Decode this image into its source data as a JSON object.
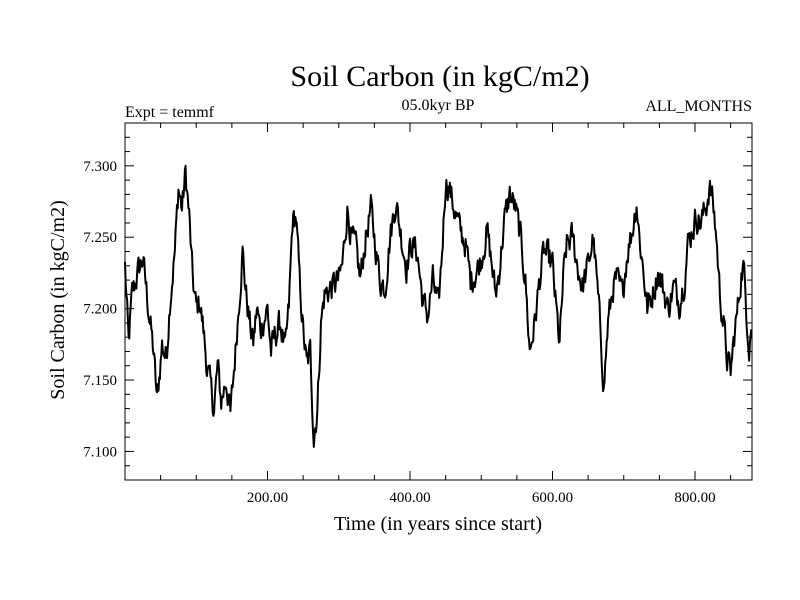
{
  "chart_data": {
    "type": "line",
    "title": "Soil Carbon (in kgC/m2)",
    "subtitle_left": "Expt = temmf",
    "subtitle_center": "05.0kyr BP",
    "subtitle_right": "ALL_MONTHS",
    "xlabel": "Time (in years since start)",
    "ylabel": "Soil Carbon (in kgC/m2)",
    "xlim": [
      0,
      880
    ],
    "ylim": [
      7.08,
      7.33
    ],
    "x_ticks": [
      200,
      400,
      600,
      800
    ],
    "x_tick_labels": [
      "200.00",
      "400.00",
      "600.00",
      "800.00"
    ],
    "y_ticks": [
      7.1,
      7.15,
      7.2,
      7.25,
      7.3
    ],
    "y_tick_labels": [
      "7.100",
      "7.150",
      "7.200",
      "7.250",
      "7.300"
    ],
    "line_color": "#000000",
    "series": [
      {
        "name": "Soil Carbon",
        "x_start": 0,
        "x_step": 1,
        "count": 880,
        "noise_amplitude": 0.008,
        "anchors": [
          [
            0,
            7.23
          ],
          [
            5,
            7.175
          ],
          [
            10,
            7.21
          ],
          [
            18,
            7.225
          ],
          [
            25,
            7.235
          ],
          [
            33,
            7.2
          ],
          [
            40,
            7.17
          ],
          [
            45,
            7.135
          ],
          [
            52,
            7.175
          ],
          [
            58,
            7.165
          ],
          [
            63,
            7.205
          ],
          [
            70,
            7.24
          ],
          [
            75,
            7.285
          ],
          [
            80,
            7.27
          ],
          [
            85,
            7.295
          ],
          [
            90,
            7.265
          ],
          [
            95,
            7.22
          ],
          [
            100,
            7.2
          ],
          [
            105,
            7.205
          ],
          [
            110,
            7.185
          ],
          [
            115,
            7.16
          ],
          [
            120,
            7.145
          ],
          [
            125,
            7.13
          ],
          [
            130,
            7.16
          ],
          [
            135,
            7.135
          ],
          [
            142,
            7.15
          ],
          [
            148,
            7.125
          ],
          [
            155,
            7.17
          ],
          [
            160,
            7.205
          ],
          [
            165,
            7.24
          ],
          [
            170,
            7.21
          ],
          [
            175,
            7.19
          ],
          [
            180,
            7.175
          ],
          [
            185,
            7.2
          ],
          [
            190,
            7.185
          ],
          [
            200,
            7.2
          ],
          [
            205,
            7.17
          ],
          [
            210,
            7.18
          ],
          [
            218,
            7.19
          ],
          [
            225,
            7.17
          ],
          [
            230,
            7.2
          ],
          [
            235,
            7.26
          ],
          [
            240,
            7.265
          ],
          [
            245,
            7.22
          ],
          [
            250,
            7.185
          ],
          [
            255,
            7.16
          ],
          [
            260,
            7.17
          ],
          [
            265,
            7.11
          ],
          [
            270,
            7.13
          ],
          [
            275,
            7.19
          ],
          [
            280,
            7.21
          ],
          [
            290,
            7.215
          ],
          [
            300,
            7.22
          ],
          [
            305,
            7.23
          ],
          [
            312,
            7.27
          ],
          [
            318,
            7.25
          ],
          [
            325,
            7.24
          ],
          [
            330,
            7.22
          ],
          [
            338,
            7.25
          ],
          [
            345,
            7.27
          ],
          [
            350,
            7.25
          ],
          [
            358,
            7.22
          ],
          [
            365,
            7.215
          ],
          [
            372,
            7.25
          ],
          [
            380,
            7.275
          ],
          [
            388,
            7.25
          ],
          [
            395,
            7.23
          ],
          [
            402,
            7.245
          ],
          [
            410,
            7.24
          ],
          [
            418,
            7.205
          ],
          [
            425,
            7.195
          ],
          [
            432,
            7.22
          ],
          [
            440,
            7.2
          ],
          [
            445,
            7.24
          ],
          [
            450,
            7.29
          ],
          [
            455,
            7.285
          ],
          [
            462,
            7.27
          ],
          [
            470,
            7.255
          ],
          [
            478,
            7.245
          ],
          [
            485,
            7.22
          ],
          [
            492,
            7.225
          ],
          [
            500,
            7.235
          ],
          [
            508,
            7.255
          ],
          [
            515,
            7.23
          ],
          [
            520,
            7.21
          ],
          [
            525,
            7.225
          ],
          [
            532,
            7.26
          ],
          [
            540,
            7.28
          ],
          [
            548,
            7.27
          ],
          [
            555,
            7.25
          ],
          [
            562,
            7.22
          ],
          [
            568,
            7.17
          ],
          [
            575,
            7.19
          ],
          [
            582,
            7.22
          ],
          [
            588,
            7.24
          ],
          [
            595,
            7.235
          ],
          [
            600,
            7.23
          ],
          [
            605,
            7.2
          ],
          [
            610,
            7.175
          ],
          [
            615,
            7.22
          ],
          [
            620,
            7.245
          ],
          [
            628,
            7.25
          ],
          [
            635,
            7.23
          ],
          [
            642,
            7.215
          ],
          [
            650,
            7.23
          ],
          [
            657,
            7.25
          ],
          [
            662,
            7.22
          ],
          [
            668,
            7.18
          ],
          [
            672,
            7.145
          ],
          [
            678,
            7.19
          ],
          [
            685,
            7.215
          ],
          [
            690,
            7.22
          ],
          [
            698,
            7.21
          ],
          [
            705,
            7.24
          ],
          [
            712,
            7.255
          ],
          [
            718,
            7.275
          ],
          [
            722,
            7.25
          ],
          [
            728,
            7.225
          ],
          [
            733,
            7.2
          ],
          [
            740,
            7.21
          ],
          [
            748,
            7.225
          ],
          [
            755,
            7.215
          ],
          [
            762,
            7.2
          ],
          [
            770,
            7.215
          ],
          [
            778,
            7.205
          ],
          [
            785,
            7.22
          ],
          [
            790,
            7.245
          ],
          [
            796,
            7.255
          ],
          [
            802,
            7.265
          ],
          [
            808,
            7.26
          ],
          [
            815,
            7.27
          ],
          [
            820,
            7.285
          ],
          [
            825,
            7.275
          ],
          [
            830,
            7.25
          ],
          [
            835,
            7.21
          ],
          [
            840,
            7.19
          ],
          [
            845,
            7.165
          ],
          [
            850,
            7.155
          ],
          [
            855,
            7.18
          ],
          [
            860,
            7.2
          ],
          [
            865,
            7.225
          ],
          [
            868,
            7.23
          ],
          [
            872,
            7.2
          ],
          [
            876,
            7.175
          ],
          [
            879,
            7.19
          ]
        ]
      }
    ]
  }
}
